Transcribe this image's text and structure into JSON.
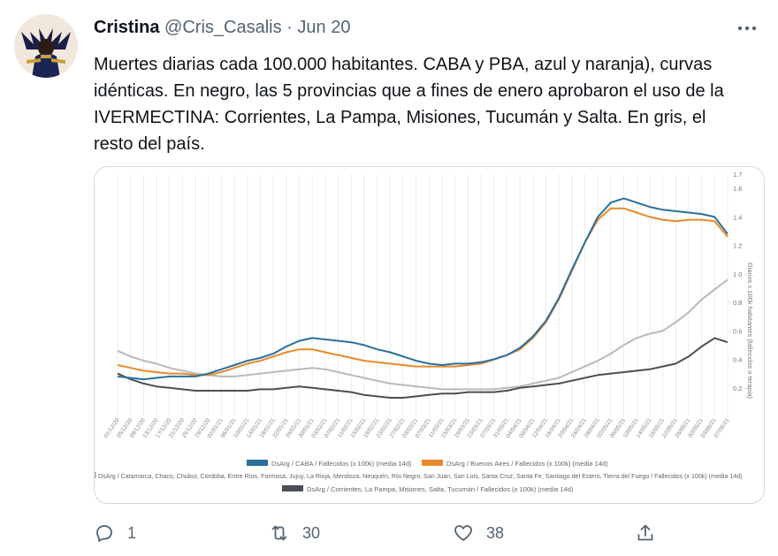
{
  "tweet": {
    "author_name": "Cristina",
    "handle": "@Cris_Casalis",
    "separator": "·",
    "date": "Jun 20",
    "text": "Muertes diarias cada 100.000 habitantes. CABA y PBA, azul y naranja), curvas idénticas. En negro, las 5 provincias que a fines de enero aprobaron el uso de la IVERMECTINA: Corrientes, La Pampa, Misiones, Tucumán y Salta. En gris, el resto del país.",
    "more_icon": "more-icon"
  },
  "actions": {
    "reply_count": "1",
    "retweet_count": "30",
    "like_count": "38"
  },
  "chart_data": {
    "type": "line",
    "x": [
      "01/12/20",
      "05/12/20",
      "09/12/20",
      "13/12/20",
      "17/12/20",
      "21/12/20",
      "25/12/20",
      "29/12/20",
      "02/01/21",
      "06/01/21",
      "10/01/21",
      "14/01/21",
      "18/01/21",
      "22/01/21",
      "26/01/21",
      "30/01/21",
      "03/02/21",
      "07/02/21",
      "11/02/21",
      "15/02/21",
      "19/02/21",
      "23/02/21",
      "27/02/21",
      "03/03/21",
      "07/03/21",
      "11/03/21",
      "15/03/21",
      "19/03/21",
      "23/03/21",
      "27/03/21",
      "31/03/21",
      "04/04/21",
      "08/04/21",
      "12/04/21",
      "16/04/21",
      "20/04/21",
      "24/04/21",
      "28/04/21",
      "02/05/21",
      "06/05/21",
      "10/05/21",
      "14/05/21",
      "18/05/21",
      "22/05/21",
      "26/05/21",
      "30/05/21",
      "03/06/21",
      "07/06/21"
    ],
    "ylabel": "Diarios x 100k habitantes (fallecidos o terapia)",
    "ylim": [
      0,
      1.7
    ],
    "y_ticks": [
      "0.2",
      "0.4",
      "0.6",
      "0.8",
      "1.0",
      "1.2",
      "1.4",
      "1.6",
      "1.7"
    ],
    "grid": "vertical",
    "legend": "bottom",
    "series": [
      {
        "name": "DsArg / CABA / Fallecidos (x 100k) (media 14d)",
        "color": "#2a6f9e",
        "values": [
          0.28,
          0.27,
          0.26,
          0.27,
          0.28,
          0.28,
          0.28,
          0.3,
          0.33,
          0.36,
          0.39,
          0.41,
          0.44,
          0.49,
          0.53,
          0.55,
          0.54,
          0.53,
          0.52,
          0.5,
          0.47,
          0.45,
          0.42,
          0.39,
          0.37,
          0.36,
          0.37,
          0.37,
          0.38,
          0.4,
          0.43,
          0.48,
          0.56,
          0.67,
          0.83,
          1.03,
          1.22,
          1.4,
          1.5,
          1.53,
          1.5,
          1.47,
          1.45,
          1.44,
          1.43,
          1.42,
          1.4,
          1.28
        ]
      },
      {
        "name": "DsArg / Buenos Aires / Fallecidos (x 100k) (media 14d)",
        "color": "#e8892b",
        "values": [
          0.36,
          0.34,
          0.32,
          0.31,
          0.3,
          0.3,
          0.29,
          0.29,
          0.31,
          0.34,
          0.37,
          0.39,
          0.42,
          0.45,
          0.47,
          0.47,
          0.45,
          0.43,
          0.41,
          0.39,
          0.38,
          0.37,
          0.36,
          0.35,
          0.35,
          0.35,
          0.35,
          0.36,
          0.37,
          0.4,
          0.43,
          0.47,
          0.55,
          0.66,
          0.82,
          1.02,
          1.22,
          1.38,
          1.46,
          1.46,
          1.43,
          1.4,
          1.38,
          1.37,
          1.38,
          1.38,
          1.37,
          1.26
        ]
      },
      {
        "name": "DsArg / Catamarca, Chaco, Chubut, Córdoba, Entre Ríos, Formosa, Jujuy, La Rioja, Mendoza, Neuquén, Río Negro, San Juan, San Luis, Santa Cruz, Santa Fe, Santiago del Estero, Tierra del Fuego / Fallecidos (x 100k) (media 14d)",
        "color": "#b9b9b9",
        "values": [
          0.46,
          0.42,
          0.39,
          0.37,
          0.34,
          0.32,
          0.3,
          0.29,
          0.28,
          0.28,
          0.29,
          0.3,
          0.31,
          0.32,
          0.33,
          0.34,
          0.33,
          0.31,
          0.29,
          0.27,
          0.25,
          0.23,
          0.22,
          0.21,
          0.2,
          0.19,
          0.19,
          0.19,
          0.19,
          0.19,
          0.2,
          0.21,
          0.23,
          0.25,
          0.27,
          0.31,
          0.35,
          0.39,
          0.44,
          0.5,
          0.55,
          0.58,
          0.6,
          0.66,
          0.73,
          0.82,
          0.89,
          0.96
        ]
      },
      {
        "name": "DsArg / Corrientes, La Pampa, Misiones, Salta, Tucumán / Fallecidos (x 100k) (media 14d)",
        "color": "#4a4f55",
        "values": [
          0.3,
          0.26,
          0.23,
          0.21,
          0.2,
          0.19,
          0.18,
          0.18,
          0.18,
          0.18,
          0.18,
          0.19,
          0.19,
          0.2,
          0.21,
          0.2,
          0.19,
          0.18,
          0.17,
          0.15,
          0.14,
          0.13,
          0.13,
          0.14,
          0.15,
          0.16,
          0.16,
          0.17,
          0.17,
          0.17,
          0.18,
          0.2,
          0.21,
          0.22,
          0.23,
          0.25,
          0.27,
          0.29,
          0.3,
          0.31,
          0.32,
          0.33,
          0.35,
          0.37,
          0.42,
          0.49,
          0.55,
          0.52
        ]
      }
    ]
  }
}
